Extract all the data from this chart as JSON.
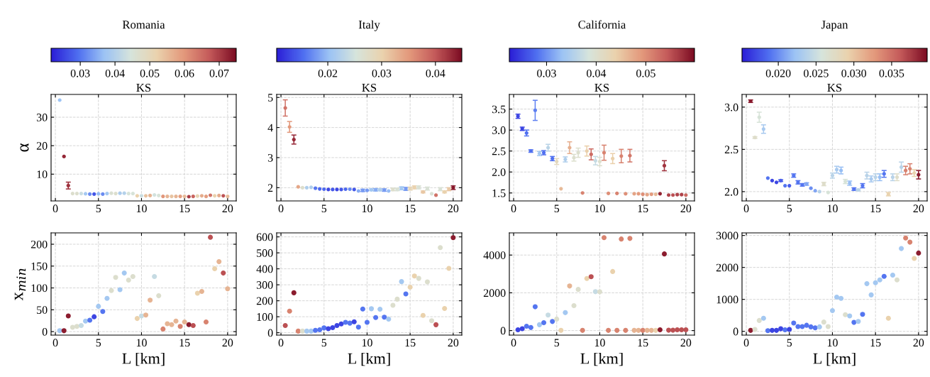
{
  "chart_data": [
    {
      "type": "scatter",
      "title": "Romania",
      "clabel": "KS",
      "clim": [
        0.0216,
        0.0749
      ],
      "cticks": [
        0.03,
        0.04,
        0.05,
        0.06,
        0.07
      ],
      "ylabel": "α",
      "grid": true,
      "marker": "circle",
      "xlim": [
        -0.5,
        21
      ],
      "xticks": [
        0,
        5,
        10,
        15,
        20
      ],
      "ylim": [
        0.6,
        38
      ],
      "yticks": [
        10,
        20,
        30
      ],
      "x": [
        0.5,
        1,
        1.5,
        2,
        2.5,
        3,
        3.5,
        4,
        4.5,
        5,
        5.5,
        6,
        6.5,
        7,
        7.5,
        8,
        8.5,
        9,
        9.5,
        10,
        10.5,
        11,
        11.5,
        12,
        12.5,
        13,
        13.5,
        14,
        14.5,
        15,
        15.5,
        16,
        16.5,
        17,
        17.5,
        18,
        18.5,
        19,
        19.5,
        20
      ],
      "values": [
        36,
        16.2,
        6,
        3.2,
        3.2,
        3.2,
        3.1,
        3.0,
        3.0,
        3.1,
        3.0,
        3.2,
        3.3,
        3.2,
        3.3,
        3.3,
        3.2,
        3.2,
        2.4,
        2.4,
        2.4,
        2.5,
        2.7,
        2.5,
        2.2,
        2.2,
        2.2,
        2.2,
        2.2,
        2.2,
        2.1,
        2.2,
        2.3,
        2.4,
        2.2,
        2.6,
        2.4,
        2.5,
        2.4,
        2.2
      ],
      "cvalues": [
        0.037,
        0.072,
        0.071,
        0.047,
        0.047,
        0.043,
        0.038,
        0.032,
        0.027,
        0.036,
        0.032,
        0.038,
        0.046,
        0.047,
        0.039,
        0.04,
        0.045,
        0.045,
        0.052,
        0.043,
        0.054,
        0.056,
        0.044,
        0.045,
        0.06,
        0.056,
        0.054,
        0.056,
        0.059,
        0.055,
        0.07,
        0.066,
        0.051,
        0.057,
        0.059,
        0.064,
        0.052,
        0.057,
        0.068,
        0.055
      ],
      "errors": [
        null,
        null,
        1.2,
        null,
        null,
        null,
        null,
        null,
        null,
        null,
        null,
        null,
        null,
        null,
        null,
        null,
        null,
        null,
        null,
        null,
        null,
        null,
        null,
        null,
        null,
        null,
        null,
        null,
        null,
        null,
        null,
        null,
        null,
        null,
        null,
        null,
        null,
        null,
        null,
        null
      ]
    },
    {
      "type": "scatter",
      "title": "Italy",
      "clabel": "KS",
      "clim": [
        0.0105,
        0.0449
      ],
      "cticks": [
        0.02,
        0.03,
        0.04
      ],
      "grid": true,
      "marker": "circle",
      "xlim": [
        -0.5,
        21
      ],
      "xticks": [
        0,
        5,
        10,
        15,
        20
      ],
      "ylim": [
        1.56,
        5.1
      ],
      "yticks": [
        2,
        3,
        4,
        5
      ],
      "x": [
        0.5,
        1,
        1.5,
        2,
        2.5,
        3,
        3.5,
        4,
        4.5,
        5,
        5.5,
        6,
        6.5,
        7,
        7.5,
        8,
        8.5,
        9,
        9.5,
        10,
        10.5,
        11,
        11.5,
        12,
        12.5,
        13,
        13.5,
        14,
        14.5,
        15,
        15.5,
        16,
        16.5,
        17,
        17.5,
        18,
        18.5,
        19,
        19.5,
        20
      ],
      "values": [
        4.65,
        4.02,
        3.6,
        2.03,
        2.0,
        2.0,
        2.01,
        1.98,
        1.96,
        1.95,
        1.94,
        1.94,
        1.94,
        1.94,
        1.95,
        1.95,
        1.94,
        1.89,
        1.91,
        1.91,
        1.93,
        1.93,
        1.93,
        1.92,
        1.89,
        1.94,
        1.94,
        1.98,
        1.96,
        1.97,
        2.01,
        2.01,
        1.86,
        1.97,
        1.8,
        1.75,
        1.95,
        1.86,
        1.95,
        2.0
      ],
      "cvalues": [
        0.038,
        0.035,
        0.043,
        0.034,
        0.027,
        0.022,
        0.022,
        0.016,
        0.015,
        0.015,
        0.013,
        0.014,
        0.013,
        0.014,
        0.015,
        0.017,
        0.014,
        0.019,
        0.018,
        0.018,
        0.021,
        0.019,
        0.022,
        0.018,
        0.02,
        0.027,
        0.026,
        0.021,
        0.018,
        0.029,
        0.03,
        0.026,
        0.031,
        0.026,
        0.026,
        0.038,
        0.026,
        0.03,
        0.031,
        0.044
      ],
      "errors": [
        0.27,
        0.18,
        0.15,
        null,
        null,
        null,
        null,
        null,
        null,
        null,
        null,
        null,
        null,
        null,
        null,
        null,
        null,
        null,
        0.04,
        null,
        0.03,
        0.04,
        0.03,
        0.04,
        null,
        0.04,
        0.04,
        0.05,
        0.05,
        0.05,
        0.05,
        0.05,
        0.03,
        0.05,
        null,
        null,
        0.05,
        0.03,
        0.05,
        0.06
      ]
    },
    {
      "type": "scatter",
      "title": "California",
      "clabel": "KS",
      "clim": [
        0.0225,
        0.0598
      ],
      "cticks": [
        0.03,
        0.04,
        0.05
      ],
      "grid": true,
      "marker": "circle",
      "xlim": [
        -0.5,
        21
      ],
      "xticks": [
        0,
        5,
        10,
        15,
        20
      ],
      "ylim": [
        1.31,
        3.85
      ],
      "yticks": [
        {
          "value": 1.5,
          "label": "1.5"
        },
        {
          "value": 2.0,
          "label": "2.0"
        },
        {
          "value": 2.5,
          "label": "2.5"
        },
        {
          "value": 3.0,
          "label": "3.0"
        },
        {
          "value": 3.5,
          "label": "3.5"
        }
      ],
      "x": [
        0.5,
        1,
        1.5,
        2,
        2.5,
        3,
        3.5,
        4,
        4.5,
        5,
        5.5,
        6,
        6.5,
        7,
        7.5,
        8,
        8.5,
        9,
        9.5,
        10,
        10.5,
        11,
        11.5,
        12,
        12.5,
        13,
        13.5,
        14,
        14.5,
        15,
        15.5,
        16,
        16.5,
        17,
        17.5,
        18,
        18.5,
        19,
        19.5,
        20
      ],
      "values": [
        3.33,
        3.03,
        2.93,
        2.5,
        3.47,
        2.44,
        2.46,
        2.58,
        2.32,
        2.25,
        1.6,
        2.3,
        2.58,
        2.34,
        2.46,
        1.5,
        2.5,
        2.42,
        2.27,
        2.25,
        2.46,
        1.49,
        2.32,
        1.49,
        2.38,
        1.48,
        2.39,
        1.48,
        1.48,
        1.47,
        1.46,
        1.47,
        1.47,
        1.48,
        2.15,
        1.45,
        1.45,
        1.46,
        1.46,
        1.45
      ],
      "cvalues": [
        0.025,
        0.025,
        0.028,
        0.028,
        0.029,
        0.034,
        0.028,
        0.036,
        0.028,
        0.042,
        0.046,
        0.035,
        0.047,
        0.04,
        0.04,
        0.051,
        0.044,
        0.053,
        0.037,
        0.04,
        0.051,
        0.05,
        0.044,
        0.051,
        0.051,
        0.05,
        0.052,
        0.048,
        0.049,
        0.05,
        0.048,
        0.049,
        0.046,
        0.058,
        0.057,
        0.056,
        0.055,
        0.056,
        0.056,
        0.053
      ],
      "errors": [
        0.05,
        0.04,
        0.07,
        0.03,
        0.24,
        0.05,
        0.05,
        0.08,
        0.05,
        0.07,
        null,
        0.06,
        0.14,
        0.08,
        0.11,
        null,
        0.12,
        0.13,
        0.1,
        0.1,
        0.18,
        null,
        0.12,
        null,
        0.16,
        null,
        0.15,
        null,
        null,
        null,
        null,
        null,
        null,
        null,
        0.12,
        null,
        null,
        null,
        null,
        null
      ]
    },
    {
      "type": "scatter",
      "title": "Japan",
      "clabel": "KS",
      "clim": [
        0.0152,
        0.0397
      ],
      "cticks": [
        {
          "value": 0.02,
          "label": "0.020"
        },
        {
          "value": 0.025,
          "label": "0.025"
        },
        {
          "value": 0.03,
          "label": "0.030"
        },
        {
          "value": 0.035,
          "label": "0.035"
        }
      ],
      "grid": true,
      "marker": "circle",
      "xlim": [
        -0.5,
        21
      ],
      "xticks": [
        0,
        5,
        10,
        15,
        20
      ],
      "ylim": [
        1.89,
        3.15
      ],
      "yticks": [
        {
          "value": 2.0,
          "label": "2.0"
        },
        {
          "value": 2.5,
          "label": "2.5"
        },
        {
          "value": 3.0,
          "label": "3.0"
        }
      ],
      "x": [
        0.5,
        1,
        1.5,
        2,
        2.5,
        3,
        3.5,
        4,
        4.5,
        5,
        5.5,
        6,
        6.5,
        7,
        7.5,
        8,
        8.5,
        9,
        9.5,
        10,
        10.5,
        11,
        11.5,
        12,
        12.5,
        13,
        13.5,
        14,
        14.5,
        15,
        15.5,
        16,
        16.5,
        17,
        17.5,
        18,
        18.5,
        19,
        19.5,
        20
      ],
      "values": [
        3.07,
        2.64,
        2.88,
        2.74,
        2.16,
        2.13,
        2.11,
        2.13,
        2.07,
        2.07,
        2.19,
        2.11,
        2.08,
        2.09,
        2.04,
        2.01,
        2.0,
        2.09,
        1.99,
        2.19,
        2.26,
        2.25,
        2.12,
        2.1,
        2.03,
        2.02,
        2.07,
        2.19,
        2.15,
        2.17,
        2.17,
        2.21,
        1.97,
        2.17,
        2.17,
        2.29,
        2.25,
        2.27,
        2.22,
        2.2
      ],
      "cvalues": [
        0.039,
        0.027,
        0.026,
        0.023,
        0.019,
        0.017,
        0.017,
        0.018,
        0.019,
        0.018,
        0.019,
        0.019,
        0.019,
        0.021,
        0.02,
        0.021,
        0.024,
        0.027,
        0.026,
        0.024,
        0.023,
        0.022,
        0.026,
        0.022,
        0.019,
        0.024,
        0.019,
        0.024,
        0.023,
        0.024,
        0.022,
        0.019,
        0.029,
        0.024,
        0.027,
        0.024,
        0.034,
        0.034,
        0.029,
        0.039
      ],
      "errors": [
        0.015,
        0.01,
        0.06,
        0.05,
        null,
        null,
        null,
        0.01,
        null,
        null,
        0.02,
        0.02,
        0.015,
        0.015,
        null,
        null,
        null,
        0.02,
        null,
        0.03,
        0.04,
        0.04,
        0.025,
        0.025,
        0.015,
        0.01,
        0.025,
        0.04,
        0.035,
        0.04,
        0.04,
        0.04,
        0.02,
        0.04,
        0.04,
        0.06,
        0.05,
        0.06,
        0.04,
        0.05
      ]
    },
    {
      "type": "scatter",
      "ylabel": "x$_{min}$",
      "xlabel": "L [km]",
      "grid": true,
      "marker": "circle",
      "xlim": [
        -0.5,
        21
      ],
      "xticks": [
        0,
        5,
        10,
        15,
        20
      ],
      "ylim": [
        -8,
        226
      ],
      "yticks": [
        0,
        50,
        100,
        150,
        200
      ],
      "x": [
        0.5,
        1,
        1.5,
        2,
        2.5,
        3,
        3.5,
        4,
        4.5,
        5,
        5.5,
        6,
        6.5,
        7,
        7.5,
        8,
        8.5,
        9,
        9.5,
        10,
        10.5,
        11,
        11.5,
        12,
        12.5,
        13,
        13.5,
        14,
        14.5,
        15,
        15.5,
        16,
        16.5,
        17,
        17.5,
        18,
        18.5,
        19,
        19.5,
        20
      ],
      "values": [
        2,
        2,
        36,
        10,
        12,
        14,
        24,
        26,
        34,
        58,
        46,
        76,
        94,
        124,
        96,
        134,
        118,
        126,
        30,
        36,
        38,
        72,
        126,
        82,
        6,
        18,
        16,
        24,
        12,
        22,
        16,
        14,
        88,
        92,
        22,
        216,
        144,
        160,
        134,
        98
      ],
      "colors": [
        "#a4c8f1",
        "#8b1c2e",
        "#8b1c2e",
        "#dcdecd",
        "#dcdecd",
        "#c6dbe3",
        "#a4c8f1",
        "#5475f0",
        "#3c44e2",
        "#a4c8f1",
        "#5475f0",
        "#a4c8f1",
        "#dcdecd",
        "#dcdecd",
        "#a4c8f1",
        "#a4c8f1",
        "#dcdecd",
        "#dcdecd",
        "#ead2ad",
        "#c6dbe3",
        "#e6b493",
        "#e6b493",
        "#c6dbe3",
        "#dcdecd",
        "#d8836f",
        "#e6b493",
        "#e6b493",
        "#e6b493",
        "#d8836f",
        "#e6b493",
        "#8b1c2e",
        "#bb5053",
        "#ead2ad",
        "#e6b493",
        "#d8836f",
        "#bb5053",
        "#ead2ad",
        "#e6b493",
        "#bb5053",
        "#e6b493"
      ]
    },
    {
      "type": "scatter",
      "xlabel": "L [km]",
      "grid": true,
      "marker": "circle",
      "xlim": [
        -0.5,
        21
      ],
      "xticks": [
        0,
        5,
        10,
        15,
        20
      ],
      "ylim": [
        -15,
        625
      ],
      "yticks": [
        0,
        100,
        200,
        300,
        400,
        500,
        600
      ],
      "x": [
        0.5,
        1,
        1.5,
        2,
        2.5,
        3,
        3.5,
        4,
        4.5,
        5,
        5.5,
        6,
        6.5,
        7,
        7.5,
        8,
        8.5,
        9,
        9.5,
        10,
        10.5,
        11,
        11.5,
        12,
        12.5,
        13,
        13.5,
        14,
        14.5,
        15,
        15.5,
        16,
        16.5,
        17,
        17.5,
        18,
        18.5,
        19,
        19.5,
        20
      ],
      "values": [
        45,
        135,
        250,
        10,
        10,
        10,
        10,
        15,
        18,
        30,
        25,
        32,
        45,
        55,
        65,
        60,
        68,
        35,
        148,
        65,
        150,
        95,
        147,
        97,
        85,
        172,
        210,
        320,
        243,
        285,
        355,
        340,
        108,
        318,
        75,
        50,
        533,
        152,
        403,
        595
      ],
      "colors": [
        "#bb5053",
        "#d8836f",
        "#8b1c2e",
        "#d8836f",
        "#dcdecd",
        "#a4c8f1",
        "#a4c8f1",
        "#5475f0",
        "#5475f0",
        "#5475f0",
        "#3c44e2",
        "#3c44e2",
        "#3c44e2",
        "#3c44e2",
        "#5475f0",
        "#5475f0",
        "#3c44e2",
        "#5475f0",
        "#5475f0",
        "#5475f0",
        "#a4c8f1",
        "#5475f0",
        "#a4c8f1",
        "#5475f0",
        "#a4c8f1",
        "#dcdecd",
        "#dcdecd",
        "#a4c8f1",
        "#5475f0",
        "#ead2ad",
        "#ead2ad",
        "#dcdecd",
        "#ead2ad",
        "#dcdecd",
        "#dcdecd",
        "#bb5053",
        "#dcdecd",
        "#ead2ad",
        "#ead2ad",
        "#8b1c2e"
      ]
    },
    {
      "type": "scatter",
      "xlabel": "L [km]",
      "grid": true,
      "marker": "circle",
      "xlim": [
        -0.5,
        21
      ],
      "xticks": [
        0,
        5,
        10,
        15,
        20
      ],
      "ylim": [
        -240,
        5175
      ],
      "yticks": [
        0,
        2000,
        4000
      ],
      "x": [
        0.5,
        1,
        1.5,
        2,
        2.5,
        3,
        3.5,
        4,
        4.5,
        5,
        5.5,
        6,
        6.5,
        7,
        7.5,
        8,
        8.5,
        9,
        9.5,
        10,
        10.5,
        11,
        11.5,
        12,
        12.5,
        13,
        13.5,
        14,
        14.5,
        15,
        15.5,
        16,
        16.5,
        17,
        17.5,
        18,
        18.5,
        19,
        19.5,
        20
      ],
      "values": [
        40,
        100,
        230,
        160,
        1260,
        310,
        420,
        820,
        480,
        610,
        10,
        950,
        2360,
        1320,
        2180,
        10,
        2760,
        2850,
        2060,
        2050,
        4920,
        10,
        3130,
        10,
        4850,
        10,
        4880,
        10,
        10,
        10,
        10,
        10,
        10,
        40,
        4060,
        20,
        20,
        40,
        40,
        40
      ],
      "colors": [
        "#3c44e2",
        "#3c44e2",
        "#5475f0",
        "#5475f0",
        "#5475f0",
        "#a4c8f1",
        "#5475f0",
        "#c6dbe3",
        "#5475f0",
        "#dcdecd",
        "#ead2ad",
        "#a4c8f1",
        "#e6b493",
        "#dcdecd",
        "#dcdecd",
        "#d8836f",
        "#ead2ad",
        "#bb5053",
        "#c6dbe3",
        "#dcdecd",
        "#d8836f",
        "#d8836f",
        "#ead2ad",
        "#d8836f",
        "#d8836f",
        "#d8836f",
        "#d8836f",
        "#e6b493",
        "#e6b493",
        "#d8836f",
        "#e6b493",
        "#e6b493",
        "#ead2ad",
        "#8b1c2e",
        "#8b1c2e",
        "#bb5053",
        "#bb5053",
        "#bb5053",
        "#bb5053",
        "#bb5053"
      ]
    },
    {
      "type": "scatter",
      "xlabel": "L [km]",
      "grid": true,
      "marker": "circle",
      "xlim": [
        -0.5,
        21
      ],
      "xticks": [
        0,
        5,
        10,
        15,
        20
      ],
      "ylim": [
        -118,
        3081
      ],
      "yticks": [
        0,
        1000,
        2000,
        3000
      ],
      "x": [
        0.5,
        1,
        1.5,
        2,
        2.5,
        3,
        3.5,
        4,
        4.5,
        5,
        5.5,
        6,
        6.5,
        7,
        7.5,
        8,
        8.5,
        9,
        9.5,
        10,
        10.5,
        11,
        11.5,
        12,
        12.5,
        13,
        13.5,
        14,
        14.5,
        15,
        15.5,
        16,
        16.5,
        17,
        17.5,
        18,
        18.5,
        19,
        19.5,
        20
      ],
      "values": [
        30,
        60,
        340,
        410,
        20,
        30,
        30,
        80,
        50,
        60,
        260,
        150,
        150,
        190,
        140,
        110,
        140,
        290,
        150,
        650,
        1070,
        1030,
        520,
        480,
        280,
        310,
        530,
        1490,
        1140,
        1520,
        1610,
        1720,
        410,
        1760,
        1610,
        2590,
        2920,
        2790,
        2280,
        2450
      ],
      "colors": [
        "#8b1c2e",
        "#dcdecd",
        "#dcdecd",
        "#a4c8f1",
        "#5475f0",
        "#3c44e2",
        "#3c44e2",
        "#3c44e2",
        "#5475f0",
        "#3c44e2",
        "#5475f0",
        "#5475f0",
        "#5475f0",
        "#5475f0",
        "#5475f0",
        "#5475f0",
        "#a4c8f1",
        "#dcdecd",
        "#dcdecd",
        "#a4c8f1",
        "#a4c8f1",
        "#a4c8f1",
        "#dcdecd",
        "#a4c8f1",
        "#5475f0",
        "#a4c8f1",
        "#5475f0",
        "#a4c8f1",
        "#a4c8f1",
        "#a4c8f1",
        "#a4c8f1",
        "#5475f0",
        "#ead2ad",
        "#a4c8f1",
        "#dcdecd",
        "#a4c8f1",
        "#d8836f",
        "#d8836f",
        "#ead2ad",
        "#8b1c2e"
      ]
    }
  ]
}
